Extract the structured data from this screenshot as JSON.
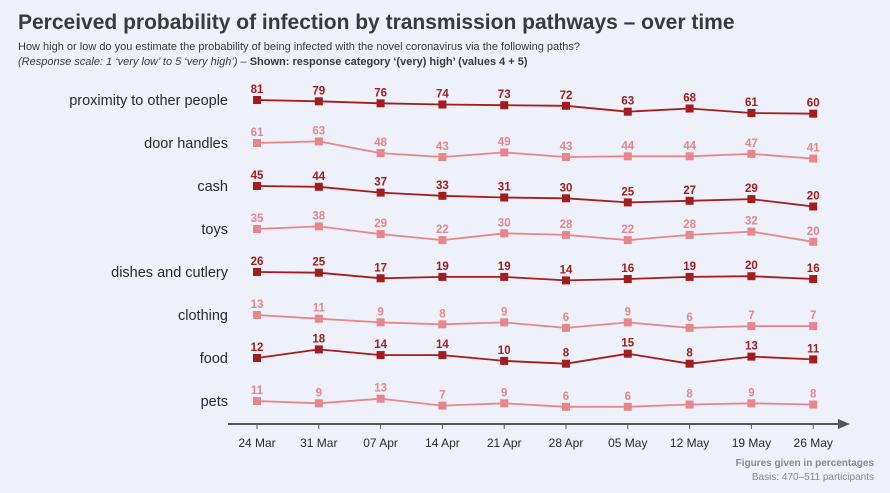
{
  "title": "Perceived probability of infection by transmission pathways – over time",
  "subtitle": "How high or low do you estimate the probability of being infected with the novel coronavirus via the following paths?",
  "scale_note": {
    "italic": "(Response scale: 1 ‘very low’ to 5 ‘very high’)",
    "dash": " – ",
    "bold": "Shown: response category ‘(very) high’ (values 4 + 5)"
  },
  "footnote": "Figures given in percentages",
  "basis": "Basis: 470–511 participants",
  "colors": {
    "dark": "#a51c1c",
    "light": "#e8868a",
    "axis": "#555555"
  },
  "chart_data": {
    "type": "line",
    "x": [
      "24 Mar",
      "31 Mar",
      "07 Apr",
      "14 Apr",
      "21 Apr",
      "28 Apr",
      "05 May",
      "12 May",
      "19 May",
      "26 May"
    ],
    "unit": "percent",
    "series": [
      {
        "name": "proximity to other people",
        "shade": "dark",
        "values": [
          81,
          79,
          76,
          74,
          73,
          72,
          63,
          68,
          61,
          60
        ]
      },
      {
        "name": "door handles",
        "shade": "light",
        "values": [
          61,
          63,
          48,
          43,
          49,
          43,
          44,
          44,
          47,
          41
        ]
      },
      {
        "name": "cash",
        "shade": "dark",
        "values": [
          45,
          44,
          37,
          33,
          31,
          30,
          25,
          27,
          29,
          20
        ]
      },
      {
        "name": "toys",
        "shade": "light",
        "values": [
          35,
          38,
          29,
          22,
          30,
          28,
          22,
          28,
          32,
          20
        ]
      },
      {
        "name": "dishes and cutlery",
        "shade": "dark",
        "values": [
          26,
          25,
          17,
          19,
          19,
          14,
          16,
          19,
          20,
          16
        ]
      },
      {
        "name": "clothing",
        "shade": "light",
        "values": [
          13,
          11,
          9,
          8,
          9,
          6,
          9,
          6,
          7,
          7
        ]
      },
      {
        "name": "food",
        "shade": "dark",
        "values": [
          12,
          18,
          14,
          14,
          10,
          8,
          15,
          8,
          13,
          11
        ]
      },
      {
        "name": "pets",
        "shade": "light",
        "values": [
          11,
          9,
          13,
          7,
          9,
          6,
          6,
          8,
          9,
          8
        ]
      }
    ]
  }
}
